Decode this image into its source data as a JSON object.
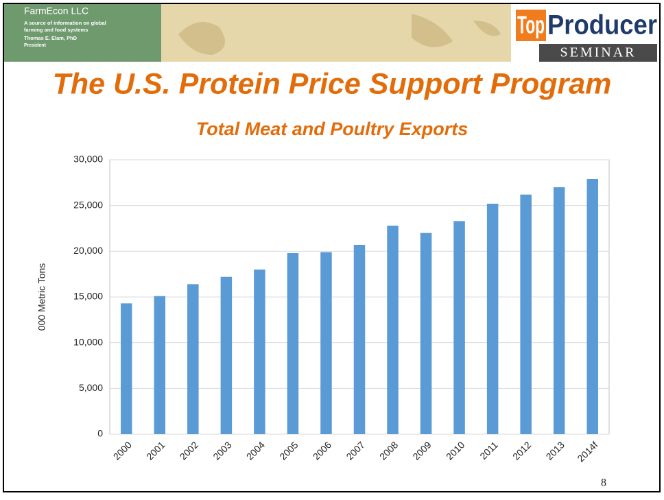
{
  "slide": {
    "company": "FarmEcon LLC",
    "tagline": [
      "A source of information on global",
      "farming and food systems"
    ],
    "author": "Thomas E. Elam, PhD",
    "role": "President",
    "logo_top": "Top",
    "logo_producer": "Producer",
    "logo_seminar": "SEMINAR",
    "title": "The U.S. Protein Price Support Program",
    "page_number": "8"
  },
  "chart_data": {
    "type": "bar",
    "title": "Total Meat and Poultry Exports",
    "ylabel": "000 Metric Tons",
    "categories": [
      "2000",
      "2001",
      "2002",
      "2003",
      "2004",
      "2005",
      "2006",
      "2007",
      "2008",
      "2009",
      "2010",
      "2011",
      "2012",
      "2013",
      "2014f"
    ],
    "values": [
      14300,
      15100,
      16400,
      17200,
      18000,
      19800,
      19900,
      20700,
      22800,
      22000,
      23300,
      25200,
      26200,
      27000,
      27900
    ],
    "color": "#5b9bd5",
    "ylim": [
      0,
      30000
    ],
    "yticks": [
      0,
      {
        "value": 5000,
        "label": "5,000"
      },
      {
        "value": 10000,
        "label": "10,000"
      },
      {
        "value": 15000,
        "label": "15,000"
      },
      {
        "value": 20000,
        "label": "20,000"
      },
      {
        "value": 25000,
        "label": "25,000"
      },
      {
        "value": 30000,
        "label": "30,000"
      }
    ],
    "grid": true
  }
}
